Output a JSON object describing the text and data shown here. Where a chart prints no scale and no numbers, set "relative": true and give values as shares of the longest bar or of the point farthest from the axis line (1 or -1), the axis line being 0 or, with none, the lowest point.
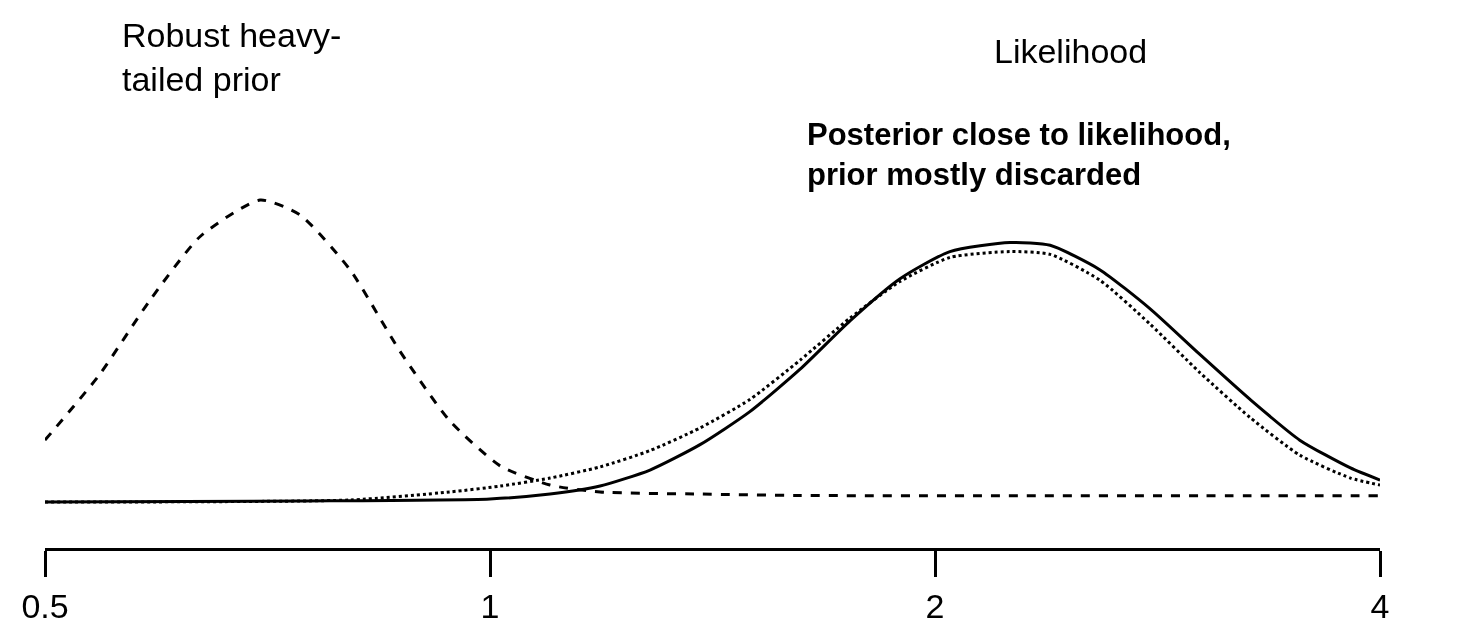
{
  "chart_data": {
    "type": "line",
    "relative": true,
    "log": "x",
    "xlim": [
      0.5,
      4
    ],
    "xticks": [
      0.5,
      1,
      2,
      4
    ],
    "tick_labels": "x",
    "legend": false,
    "marker": "none",
    "annotations": [
      "Robust heavy-\ntailed prior",
      "Likelihood",
      "Posterior close to likelihood,\nprior mostly discarded"
    ],
    "series": [
      {
        "color": "#000000",
        "line_style": "dashed",
        "x": [
          0.5,
          0.544,
          0.589,
          0.637,
          0.699,
          0.744,
          0.804,
          0.869,
          0.939,
          1.016,
          1.098,
          1.187,
          1.387,
          1.621,
          2.213,
          3.02,
          4
        ],
        "values": [
          0.31,
          0.497,
          0.713,
          0.896,
          1.0,
          0.957,
          0.8,
          0.566,
          0.366,
          0.236,
          0.181,
          0.161,
          0.155,
          0.151,
          0.15,
          0.15,
          0.15
        ]
      },
      {
        "color": "#000000",
        "line_style": "solid",
        "x": [
          0.5,
          0.744,
          1.0,
          1.098,
          1.187,
          1.283,
          1.387,
          1.499,
          1.621,
          1.752,
          1.894,
          2.047,
          2.248,
          2.393,
          2.585,
          2.795,
          3.02,
          3.267,
          3.53,
          3.82,
          4
        ],
        "values": [
          0.132,
          0.135,
          0.141,
          0.155,
          0.178,
          0.224,
          0.297,
          0.392,
          0.514,
          0.653,
          0.774,
          0.852,
          0.878,
          0.87,
          0.8,
          0.688,
          0.557,
          0.427,
          0.31,
          0.23,
          0.195
        ]
      },
      {
        "color": "#000000",
        "line_style": "dotted",
        "x": [
          0.5,
          0.804,
          0.939,
          1.016,
          1.098,
          1.187,
          1.283,
          1.387,
          1.499,
          1.621,
          1.752,
          1.894,
          2.047,
          2.248,
          2.393,
          2.585,
          2.795,
          3.02,
          3.267,
          3.53,
          3.82,
          4
        ],
        "values": [
          0.132,
          0.138,
          0.161,
          0.178,
          0.201,
          0.233,
          0.28,
          0.345,
          0.427,
          0.54,
          0.661,
          0.766,
          0.835,
          0.852,
          0.844,
          0.77,
          0.644,
          0.505,
          0.375,
          0.267,
          0.201,
          0.181
        ]
      }
    ]
  }
}
